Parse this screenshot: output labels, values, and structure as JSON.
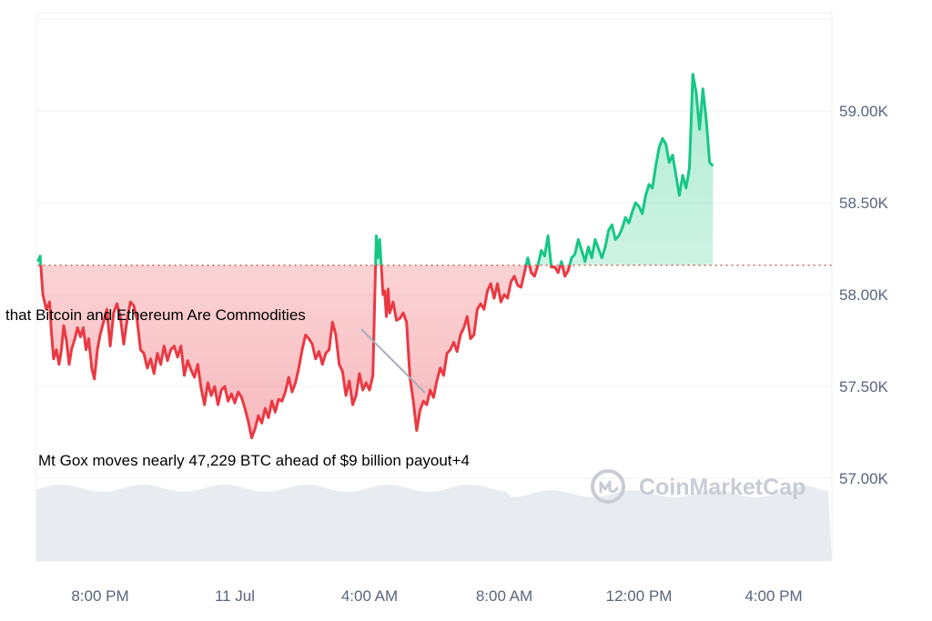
{
  "chart_data": {
    "type": "area",
    "y_ticks": [
      {
        "value": 59000,
        "label": "59.00K"
      },
      {
        "value": 58500,
        "label": "58.50K"
      },
      {
        "value": 58000,
        "label": "58.00K"
      },
      {
        "value": 57500,
        "label": "57.50K"
      },
      {
        "value": 57000,
        "label": "57.00K"
      }
    ],
    "x_ticks": [
      {
        "hours": 20,
        "label": "8:00 PM"
      },
      {
        "hours": 24,
        "label": "11 Jul"
      },
      {
        "hours": 28,
        "label": "4:00 AM"
      },
      {
        "hours": 32,
        "label": "8:00 AM"
      },
      {
        "hours": 36,
        "label": "12:00 PM"
      },
      {
        "hours": 40,
        "label": "4:00 PM"
      }
    ],
    "ylim": [
      56550,
      59500
    ],
    "xlim_hours": [
      18.1,
      41.4
    ],
    "baseline": 58160,
    "colors": {
      "up": "#16c784",
      "down": "#ea3943",
      "baseline": "#c0392b",
      "grid": "#eff2f5",
      "volume": "#e8ebef",
      "watermark": "#c7ccd6"
    },
    "price_series": [
      [
        18.15,
        58180
      ],
      [
        18.22,
        58210
      ],
      [
        18.3,
        58000
      ],
      [
        18.4,
        57920
      ],
      [
        18.5,
        57960
      ],
      [
        18.55,
        57800
      ],
      [
        18.62,
        57650
      ],
      [
        18.7,
        57700
      ],
      [
        18.78,
        57620
      ],
      [
        18.85,
        57700
      ],
      [
        18.92,
        57830
      ],
      [
        19.0,
        57750
      ],
      [
        19.08,
        57620
      ],
      [
        19.15,
        57700
      ],
      [
        19.25,
        57760
      ],
      [
        19.33,
        57820
      ],
      [
        19.42,
        57770
      ],
      [
        19.5,
        57820
      ],
      [
        19.58,
        57700
      ],
      [
        19.66,
        57760
      ],
      [
        19.75,
        57600
      ],
      [
        19.83,
        57540
      ],
      [
        19.92,
        57700
      ],
      [
        20.0,
        57780
      ],
      [
        20.1,
        57850
      ],
      [
        20.2,
        57920
      ],
      [
        20.3,
        57720
      ],
      [
        20.4,
        57900
      ],
      [
        20.5,
        57950
      ],
      [
        20.6,
        57880
      ],
      [
        20.7,
        57730
      ],
      [
        20.8,
        57860
      ],
      [
        20.9,
        57960
      ],
      [
        21.0,
        57940
      ],
      [
        21.1,
        57860
      ],
      [
        21.2,
        57700
      ],
      [
        21.3,
        57680
      ],
      [
        21.4,
        57600
      ],
      [
        21.5,
        57650
      ],
      [
        21.6,
        57570
      ],
      [
        21.7,
        57680
      ],
      [
        21.8,
        57620
      ],
      [
        21.9,
        57720
      ],
      [
        22.0,
        57640
      ],
      [
        22.1,
        57700
      ],
      [
        22.2,
        57720
      ],
      [
        22.3,
        57660
      ],
      [
        22.4,
        57720
      ],
      [
        22.5,
        57560
      ],
      [
        22.6,
        57640
      ],
      [
        22.7,
        57590
      ],
      [
        22.8,
        57550
      ],
      [
        22.9,
        57620
      ],
      [
        23.0,
        57490
      ],
      [
        23.1,
        57400
      ],
      [
        23.2,
        57520
      ],
      [
        23.3,
        57450
      ],
      [
        23.4,
        57500
      ],
      [
        23.5,
        57400
      ],
      [
        23.6,
        57480
      ],
      [
        23.7,
        57500
      ],
      [
        23.8,
        57420
      ],
      [
        23.9,
        57460
      ],
      [
        24.0,
        57410
      ],
      [
        24.1,
        57470
      ],
      [
        24.2,
        57440
      ],
      [
        24.3,
        57380
      ],
      [
        24.4,
        57310
      ],
      [
        24.5,
        57220
      ],
      [
        24.6,
        57270
      ],
      [
        24.7,
        57340
      ],
      [
        24.8,
        57300
      ],
      [
        24.9,
        57380
      ],
      [
        25.0,
        57330
      ],
      [
        25.1,
        57420
      ],
      [
        25.2,
        57360
      ],
      [
        25.3,
        57430
      ],
      [
        25.4,
        57420
      ],
      [
        25.5,
        57470
      ],
      [
        25.6,
        57550
      ],
      [
        25.7,
        57470
      ],
      [
        25.8,
        57520
      ],
      [
        25.9,
        57600
      ],
      [
        26.0,
        57700
      ],
      [
        26.1,
        57780
      ],
      [
        26.2,
        57760
      ],
      [
        26.3,
        57730
      ],
      [
        26.4,
        57650
      ],
      [
        26.5,
        57690
      ],
      [
        26.6,
        57620
      ],
      [
        26.7,
        57680
      ],
      [
        26.8,
        57700
      ],
      [
        26.9,
        57850
      ],
      [
        27.0,
        57780
      ],
      [
        27.1,
        57620
      ],
      [
        27.2,
        57580
      ],
      [
        27.3,
        57450
      ],
      [
        27.4,
        57530
      ],
      [
        27.5,
        57400
      ],
      [
        27.6,
        57450
      ],
      [
        27.7,
        57570
      ],
      [
        27.8,
        57480
      ],
      [
        27.9,
        57520
      ],
      [
        28.0,
        57480
      ],
      [
        28.1,
        57560
      ],
      [
        28.2,
        58320
      ],
      [
        28.25,
        58200
      ],
      [
        28.3,
        58300
      ],
      [
        28.35,
        58150
      ],
      [
        28.4,
        58000
      ],
      [
        28.45,
        58020
      ],
      [
        28.5,
        57880
      ],
      [
        28.55,
        58030
      ],
      [
        28.6,
        57900
      ],
      [
        28.7,
        57960
      ],
      [
        28.8,
        57860
      ],
      [
        28.9,
        57870
      ],
      [
        29.0,
        57900
      ],
      [
        29.1,
        57850
      ],
      [
        29.2,
        57550
      ],
      [
        29.3,
        57420
      ],
      [
        29.4,
        57260
      ],
      [
        29.5,
        57370
      ],
      [
        29.6,
        57420
      ],
      [
        29.7,
        57400
      ],
      [
        29.8,
        57480
      ],
      [
        29.9,
        57440
      ],
      [
        30.0,
        57530
      ],
      [
        30.1,
        57600
      ],
      [
        30.2,
        57560
      ],
      [
        30.3,
        57680
      ],
      [
        30.4,
        57700
      ],
      [
        30.5,
        57740
      ],
      [
        30.6,
        57690
      ],
      [
        30.7,
        57780
      ],
      [
        30.8,
        57820
      ],
      [
        30.9,
        57880
      ],
      [
        31.0,
        57760
      ],
      [
        31.1,
        57780
      ],
      [
        31.2,
        57920
      ],
      [
        31.3,
        57950
      ],
      [
        31.4,
        57920
      ],
      [
        31.5,
        58020
      ],
      [
        31.6,
        58060
      ],
      [
        31.7,
        57980
      ],
      [
        31.8,
        58060
      ],
      [
        31.9,
        57960
      ],
      [
        32.0,
        58000
      ],
      [
        32.1,
        57980
      ],
      [
        32.2,
        58070
      ],
      [
        32.3,
        58100
      ],
      [
        32.4,
        58050
      ],
      [
        32.5,
        58040
      ],
      [
        32.6,
        58120
      ],
      [
        32.7,
        58200
      ],
      [
        32.8,
        58120
      ],
      [
        32.9,
        58100
      ],
      [
        33.0,
        58160
      ],
      [
        33.1,
        58240
      ],
      [
        33.2,
        58210
      ],
      [
        33.3,
        58320
      ],
      [
        33.4,
        58150
      ],
      [
        33.5,
        58150
      ],
      [
        33.6,
        58120
      ],
      [
        33.7,
        58180
      ],
      [
        33.8,
        58100
      ],
      [
        33.9,
        58130
      ],
      [
        34.0,
        58200
      ],
      [
        34.1,
        58220
      ],
      [
        34.2,
        58300
      ],
      [
        34.3,
        58240
      ],
      [
        34.4,
        58180
      ],
      [
        34.5,
        58260
      ],
      [
        34.6,
        58200
      ],
      [
        34.7,
        58300
      ],
      [
        34.8,
        58250
      ],
      [
        34.9,
        58200
      ],
      [
        35.0,
        58260
      ],
      [
        35.1,
        58350
      ],
      [
        35.2,
        58380
      ],
      [
        35.3,
        58300
      ],
      [
        35.4,
        58320
      ],
      [
        35.5,
        58360
      ],
      [
        35.6,
        58420
      ],
      [
        35.7,
        58390
      ],
      [
        35.8,
        58450
      ],
      [
        35.9,
        58500
      ],
      [
        36.0,
        58480
      ],
      [
        36.1,
        58440
      ],
      [
        36.2,
        58540
      ],
      [
        36.3,
        58600
      ],
      [
        36.4,
        58580
      ],
      [
        36.5,
        58700
      ],
      [
        36.6,
        58800
      ],
      [
        36.7,
        58850
      ],
      [
        36.8,
        58820
      ],
      [
        36.9,
        58720
      ],
      [
        37.0,
        58760
      ],
      [
        37.1,
        58650
      ],
      [
        37.2,
        58540
      ],
      [
        37.3,
        58650
      ],
      [
        37.4,
        58580
      ],
      [
        37.5,
        58690
      ],
      [
        37.6,
        59200
      ],
      [
        37.7,
        59100
      ],
      [
        37.8,
        58900
      ],
      [
        37.9,
        59120
      ],
      [
        38.0,
        58950
      ],
      [
        38.1,
        58720
      ],
      [
        38.2,
        58700
      ]
    ],
    "annotations": [
      {
        "text": "that Bitcoin and Ethereum Are Commodities"
      },
      {
        "text": "Mt Gox moves nearly 47,229 BTC ahead of $9 billion payout+4"
      }
    ],
    "watermark": "CoinMarketCap",
    "grid": true
  }
}
